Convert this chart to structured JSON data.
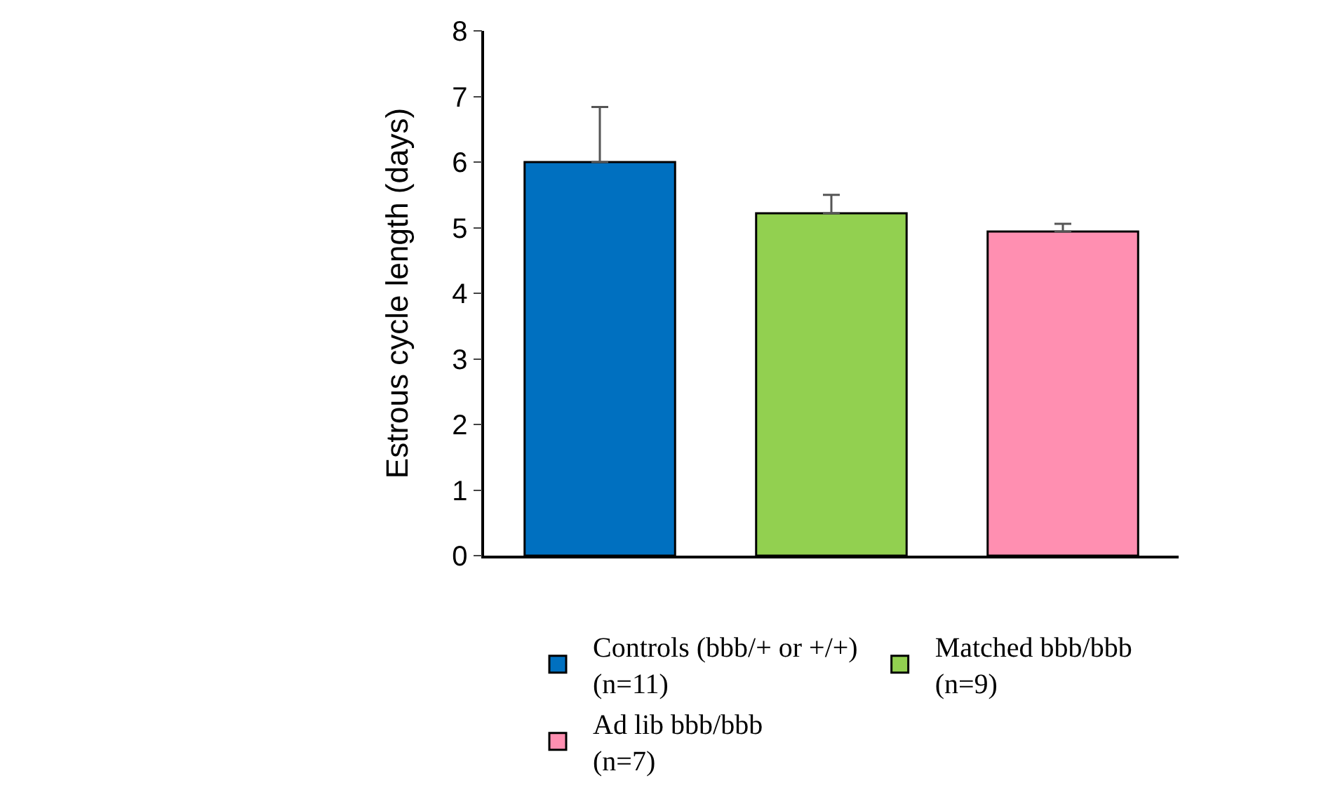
{
  "chart_data": {
    "type": "bar",
    "ylabel": "Estrous cycle length (days)",
    "categories": [
      null,
      null,
      null
    ],
    "series": [
      {
        "name": "Controls (bbb/+ or +/+)\n(n=11)",
        "color": "#0070c0",
        "values": [
          6.0,
          null,
          null
        ],
        "errors": [
          [
            6.0,
            6.84
          ],
          null,
          null
        ]
      },
      {
        "name": "Matched bbb/bbb\n(n=9)",
        "color": "#92d050",
        "values": [
          null,
          5.22,
          null
        ],
        "errors": [
          null,
          [
            5.22,
            5.5
          ],
          null
        ]
      },
      {
        "name": "Ad lib bbb/bbb\n(n=7)",
        "color": "#ff8fb1",
        "values": [
          null,
          null,
          4.94
        ],
        "errors": [
          null,
          null,
          [
            4.94,
            5.06
          ]
        ]
      }
    ],
    "ylim": [
      0,
      8
    ],
    "yticks": [
      0,
      1,
      2,
      3,
      4,
      5,
      6,
      7,
      8
    ],
    "grid": false,
    "legend": "bottom",
    "tick_labels": "y"
  }
}
